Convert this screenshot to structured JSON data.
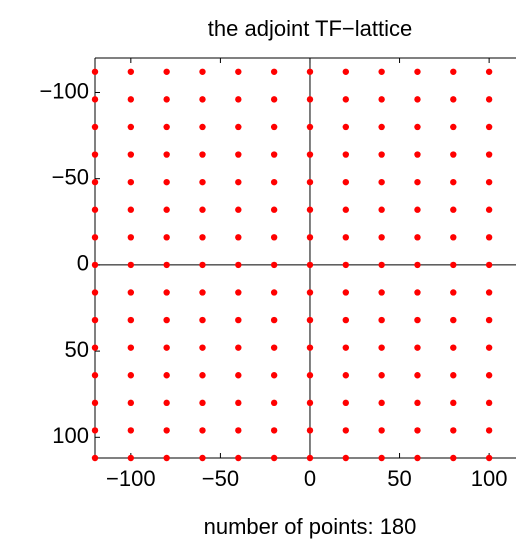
{
  "chart_data": {
    "type": "scatter",
    "title": "the adjoint TF−lattice",
    "xlabel": "number of points: 180",
    "xlim": [
      -120,
      115
    ],
    "ylim": [
      -120,
      112
    ],
    "ydir": "reverse",
    "xticks": [
      {
        "value": -100,
        "label": "−100"
      },
      {
        "value": -50,
        "label": "−50"
      },
      0,
      50,
      100
    ],
    "yticks": [
      {
        "value": -100,
        "label": "−100"
      },
      {
        "value": -50,
        "label": "−50"
      },
      0,
      50,
      100
    ],
    "series": [
      {
        "color": "#ff0000",
        "x": [
          -120,
          -100,
          -80,
          -60,
          -40,
          -20,
          0,
          20,
          40,
          60,
          80,
          100,
          -120,
          -100,
          -80,
          -60,
          -40,
          -20,
          0,
          20,
          40,
          60,
          80,
          100,
          -120,
          -100,
          -80,
          -60,
          -40,
          -20,
          0,
          20,
          40,
          60,
          80,
          100,
          -120,
          -100,
          -80,
          -60,
          -40,
          -20,
          0,
          20,
          40,
          60,
          80,
          100,
          -120,
          -100,
          -80,
          -60,
          -40,
          -20,
          0,
          20,
          40,
          60,
          80,
          100,
          -120,
          -100,
          -80,
          -60,
          -40,
          -20,
          0,
          20,
          40,
          60,
          80,
          100,
          -120,
          -100,
          -80,
          -60,
          -40,
          -20,
          0,
          20,
          40,
          60,
          80,
          100,
          -120,
          -100,
          -80,
          -60,
          -40,
          -20,
          0,
          20,
          40,
          60,
          80,
          100,
          -120,
          -100,
          -80,
          -60,
          -40,
          -20,
          0,
          20,
          40,
          60,
          80,
          100,
          -120,
          -100,
          -80,
          -60,
          -40,
          -20,
          0,
          20,
          40,
          60,
          80,
          100,
          -120,
          -100,
          -80,
          -60,
          -40,
          -20,
          0,
          20,
          40,
          60,
          80,
          100,
          -120,
          -100,
          -80,
          -60,
          -40,
          -20,
          0,
          20,
          40,
          60,
          80,
          100,
          -120,
          -100,
          -80,
          -60,
          -40,
          -20,
          0,
          20,
          40,
          60,
          80,
          100,
          -120,
          -100,
          -80,
          -60,
          -40,
          -20,
          0,
          20,
          40,
          60,
          80,
          100,
          -120,
          -100,
          -80,
          -60,
          -40,
          -20,
          0,
          20,
          40,
          60,
          80,
          100
        ],
        "values": [
          -112,
          -112,
          -112,
          -112,
          -112,
          -112,
          -112,
          -112,
          -112,
          -112,
          -112,
          -112,
          -96,
          -96,
          -96,
          -96,
          -96,
          -96,
          -96,
          -96,
          -96,
          -96,
          -96,
          -96,
          -80,
          -80,
          -80,
          -80,
          -80,
          -80,
          -80,
          -80,
          -80,
          -80,
          -80,
          -80,
          -64,
          -64,
          -64,
          -64,
          -64,
          -64,
          -64,
          -64,
          -64,
          -64,
          -64,
          -64,
          -48,
          -48,
          -48,
          -48,
          -48,
          -48,
          -48,
          -48,
          -48,
          -48,
          -48,
          -48,
          -32,
          -32,
          -32,
          -32,
          -32,
          -32,
          -32,
          -32,
          -32,
          -32,
          -32,
          -32,
          -16,
          -16,
          -16,
          -16,
          -16,
          -16,
          -16,
          -16,
          -16,
          -16,
          -16,
          -16,
          0,
          0,
          0,
          0,
          0,
          0,
          0,
          0,
          0,
          0,
          0,
          0,
          16,
          16,
          16,
          16,
          16,
          16,
          16,
          16,
          16,
          16,
          16,
          16,
          32,
          32,
          32,
          32,
          32,
          32,
          32,
          32,
          32,
          32,
          32,
          32,
          48,
          48,
          48,
          48,
          48,
          48,
          48,
          48,
          48,
          48,
          48,
          48,
          64,
          64,
          64,
          64,
          64,
          64,
          64,
          64,
          64,
          64,
          64,
          64,
          80,
          80,
          80,
          80,
          80,
          80,
          80,
          80,
          80,
          80,
          80,
          80,
          96,
          96,
          96,
          96,
          96,
          96,
          96,
          96,
          96,
          96,
          96,
          96,
          112,
          112,
          112,
          112,
          112,
          112,
          112,
          112,
          112,
          112,
          112,
          112
        ]
      }
    ]
  }
}
